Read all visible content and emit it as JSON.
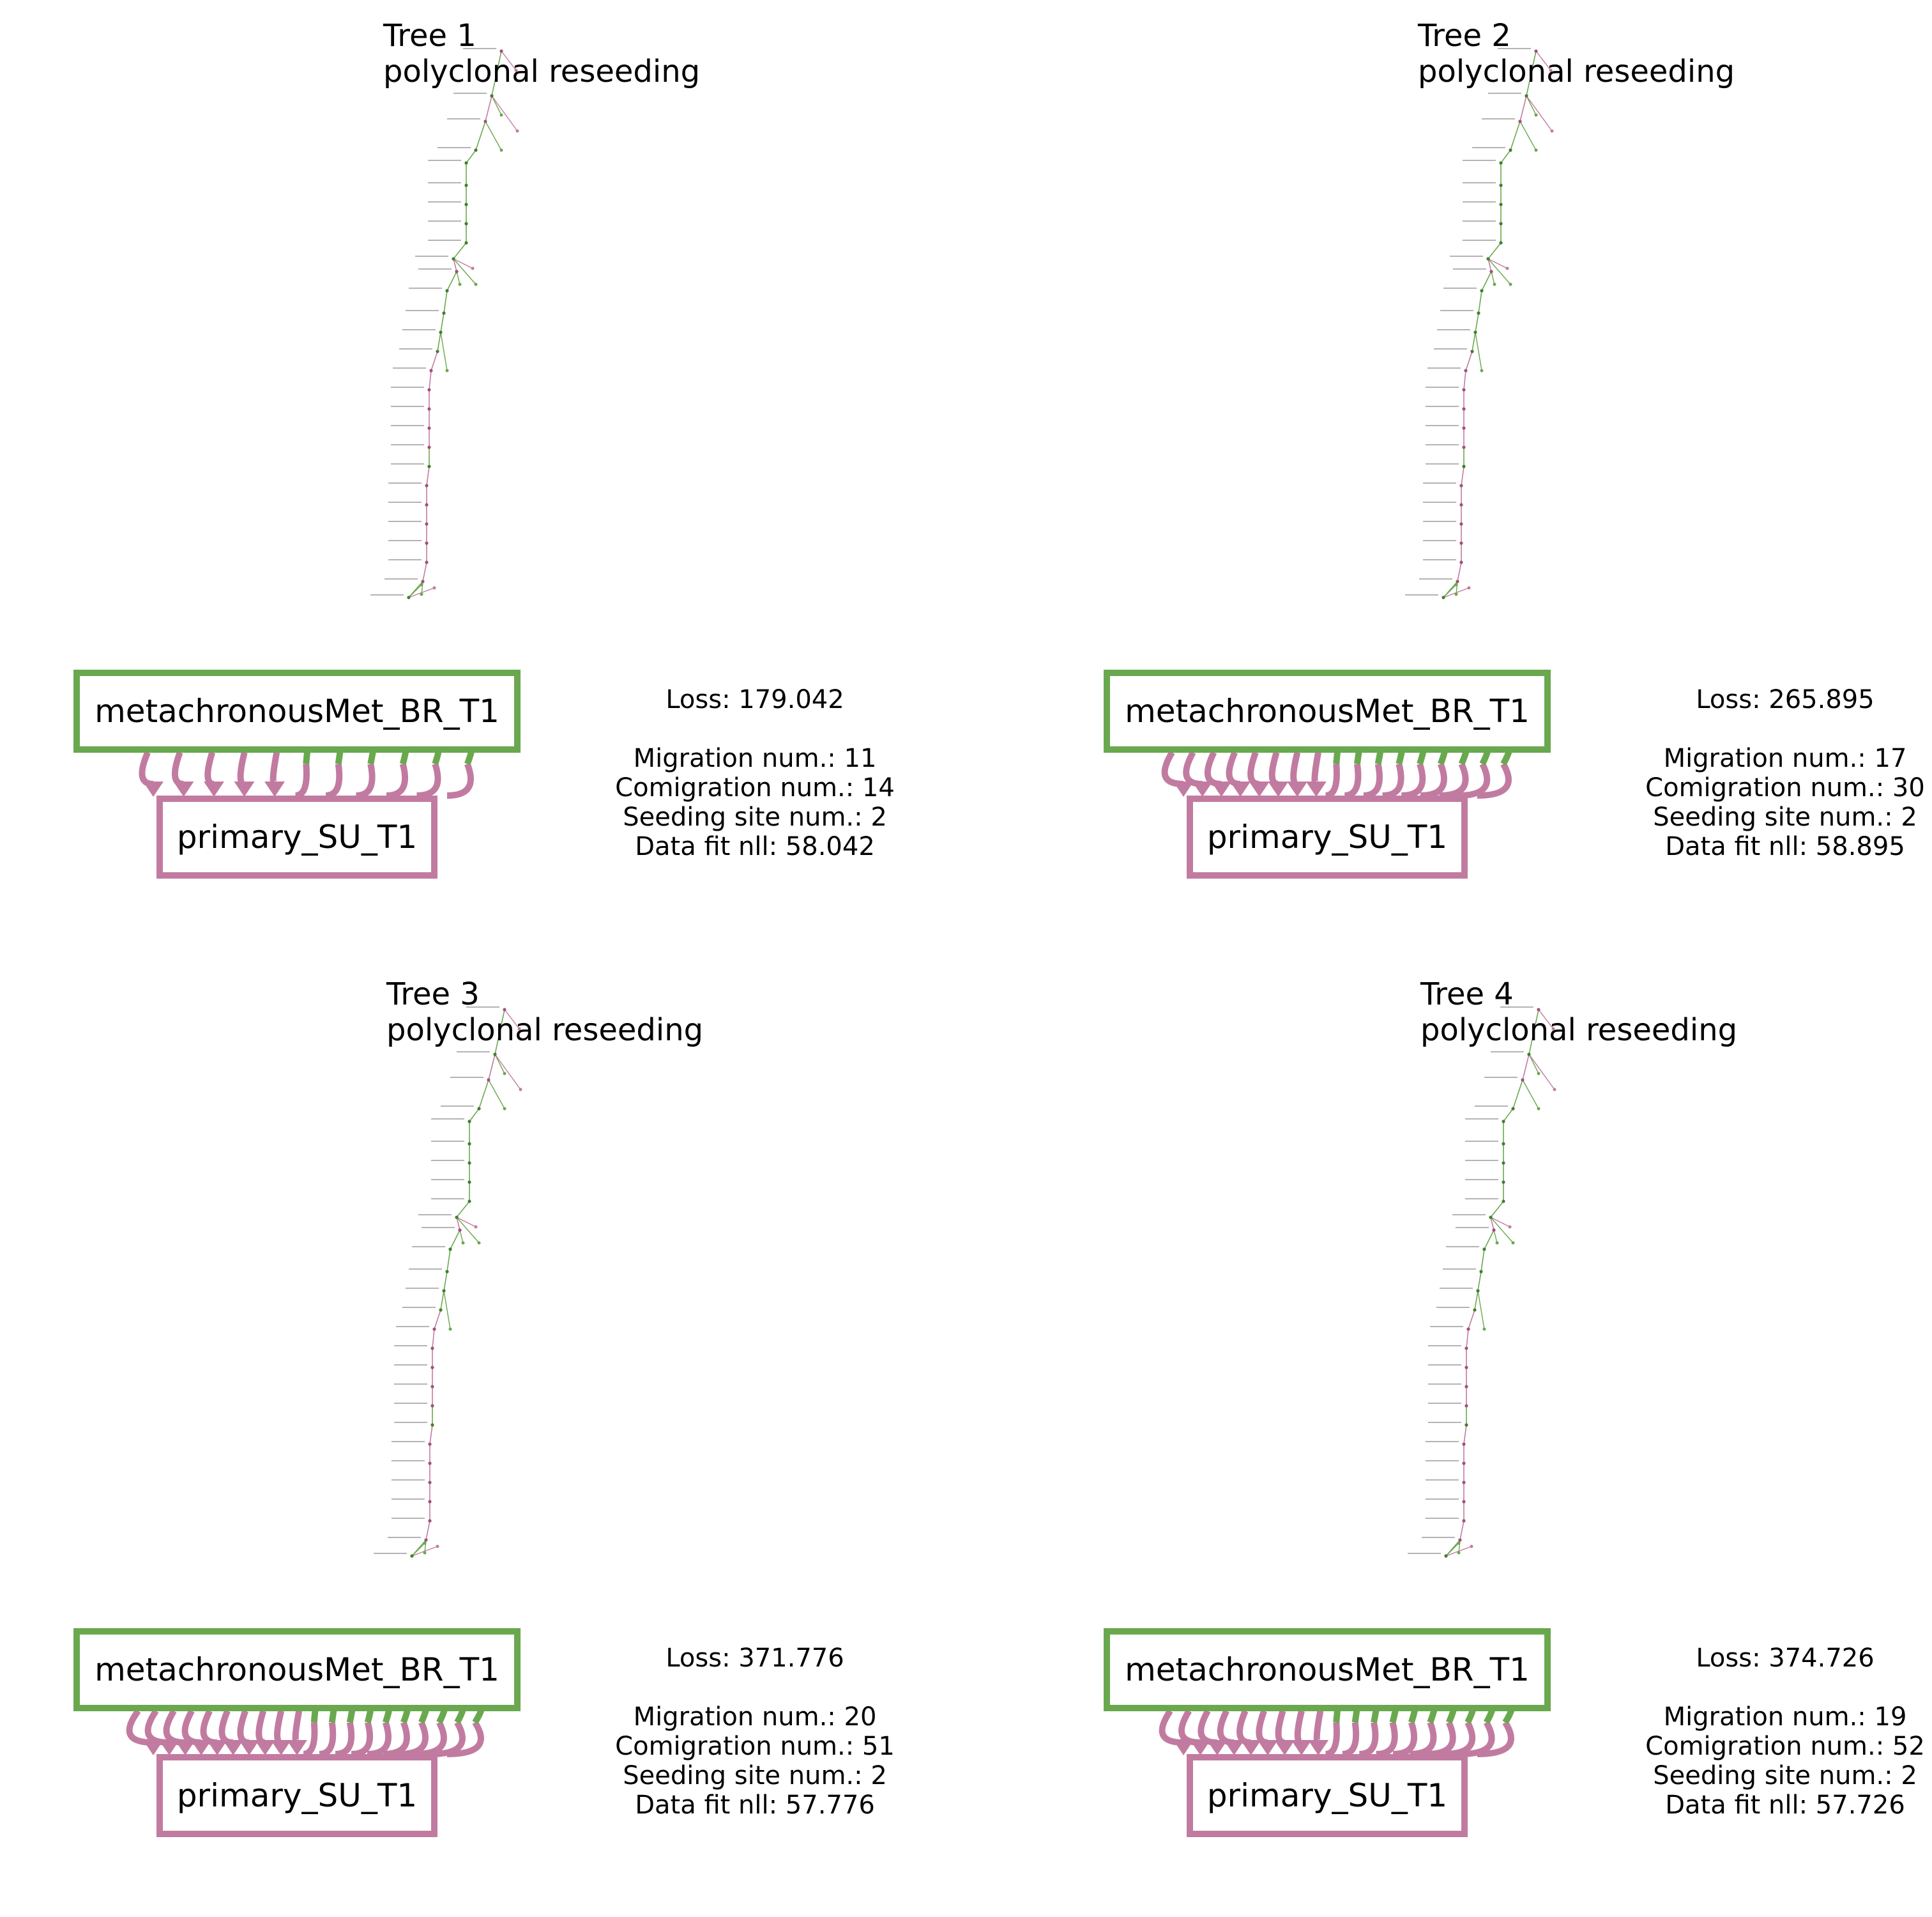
{
  "colors": {
    "met": "#6aa84f",
    "primary": "#c27ba0",
    "met_node": "#3f7f2f",
    "primary_node": "#a0507f"
  },
  "sites": {
    "met": "metachronousMet_BR_T1",
    "primary": "primary_SU_T1"
  },
  "panels": [
    {
      "title": "Tree 1",
      "subtitle": "polyclonal reseeding",
      "loss": "Loss: 179.042",
      "migration": "Migration num.: 11",
      "comigration": "Comigration num.: 14",
      "seeding": "Seeding site num.: 2",
      "nll": "Data fit nll: 58.042",
      "migrations_down": 5,
      "migrations_up": 6
    },
    {
      "title": "Tree 2",
      "subtitle": "polyclonal reseeding",
      "loss": "Loss: 265.895",
      "migration": "Migration num.: 17",
      "comigration": "Comigration num.: 30",
      "seeding": "Seeding site num.: 2",
      "nll": "Data fit nll: 58.895",
      "migrations_down": 8,
      "migrations_up": 9
    },
    {
      "title": "Tree 3",
      "subtitle": "polyclonal reseeding",
      "loss": "Loss: 371.776",
      "migration": "Migration num.: 20",
      "comigration": "Comigration num.: 51",
      "seeding": "Seeding site num.: 2",
      "nll": "Data fit nll: 57.776",
      "migrations_down": 10,
      "migrations_up": 10
    },
    {
      "title": "Tree 4",
      "subtitle": "polyclonal reseeding",
      "loss": "Loss: 374.726",
      "migration": "Migration num.: 19",
      "comigration": "Comigration num.: 52",
      "seeding": "Seeding site num.: 2",
      "nll": "Data fit nll: 57.726",
      "migrations_down": 9,
      "migrations_up": 10
    }
  ]
}
